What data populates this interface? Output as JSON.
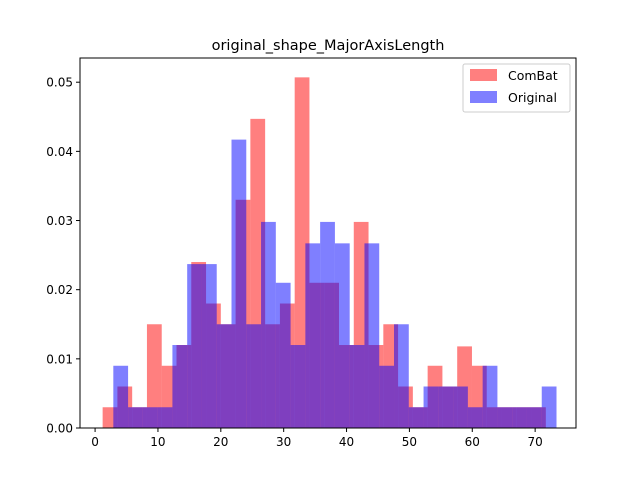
{
  "chart_data": {
    "type": "histogram",
    "title": "original_shape_MajorAxisLength",
    "xlabel": "",
    "ylabel": "",
    "xlim": [
      -2.4,
      76.5
    ],
    "ylim": [
      0,
      0.0535
    ],
    "x_ticks": [
      0,
      10,
      20,
      30,
      40,
      50,
      60,
      70
    ],
    "y_ticks": [
      0.0,
      0.01,
      0.02,
      0.03,
      0.04,
      0.05
    ],
    "y_tick_labels": [
      "0.00",
      "0.01",
      "0.02",
      "0.03",
      "0.04",
      "0.05"
    ],
    "legend_position": "top-right",
    "grid": false,
    "series": [
      {
        "name": "ComBat",
        "color": "#ff0000",
        "alpha": 0.5,
        "bin_start": 1.2,
        "bin_width": 2.35,
        "values": [
          0.003,
          0.006,
          0.003,
          0.015,
          0.009,
          0.012,
          0.024,
          0.018,
          0.015,
          0.033,
          0.0447,
          0.015,
          0.018,
          0.0507,
          0.021,
          0.021,
          0.012,
          0.0298,
          0.012,
          0.015,
          0.006,
          0.003,
          0.009,
          0.006,
          0.0118,
          0.009,
          0.003,
          0.003,
          0.003,
          0.003
        ]
      },
      {
        "name": "Original",
        "color": "#0000ff",
        "alpha": 0.5,
        "bin_start": 2.9,
        "bin_width": 2.35,
        "values": [
          0.009,
          0.003,
          0.003,
          0.003,
          0.012,
          0.0237,
          0.0237,
          0.015,
          0.0417,
          0.015,
          0.0298,
          0.021,
          0.012,
          0.0267,
          0.0298,
          0.0267,
          0.012,
          0.0267,
          0.009,
          0.015,
          0.003,
          0.006,
          0.006,
          0.006,
          0.003,
          0.009,
          0.003,
          0.003,
          0.003,
          0.006
        ]
      }
    ]
  }
}
